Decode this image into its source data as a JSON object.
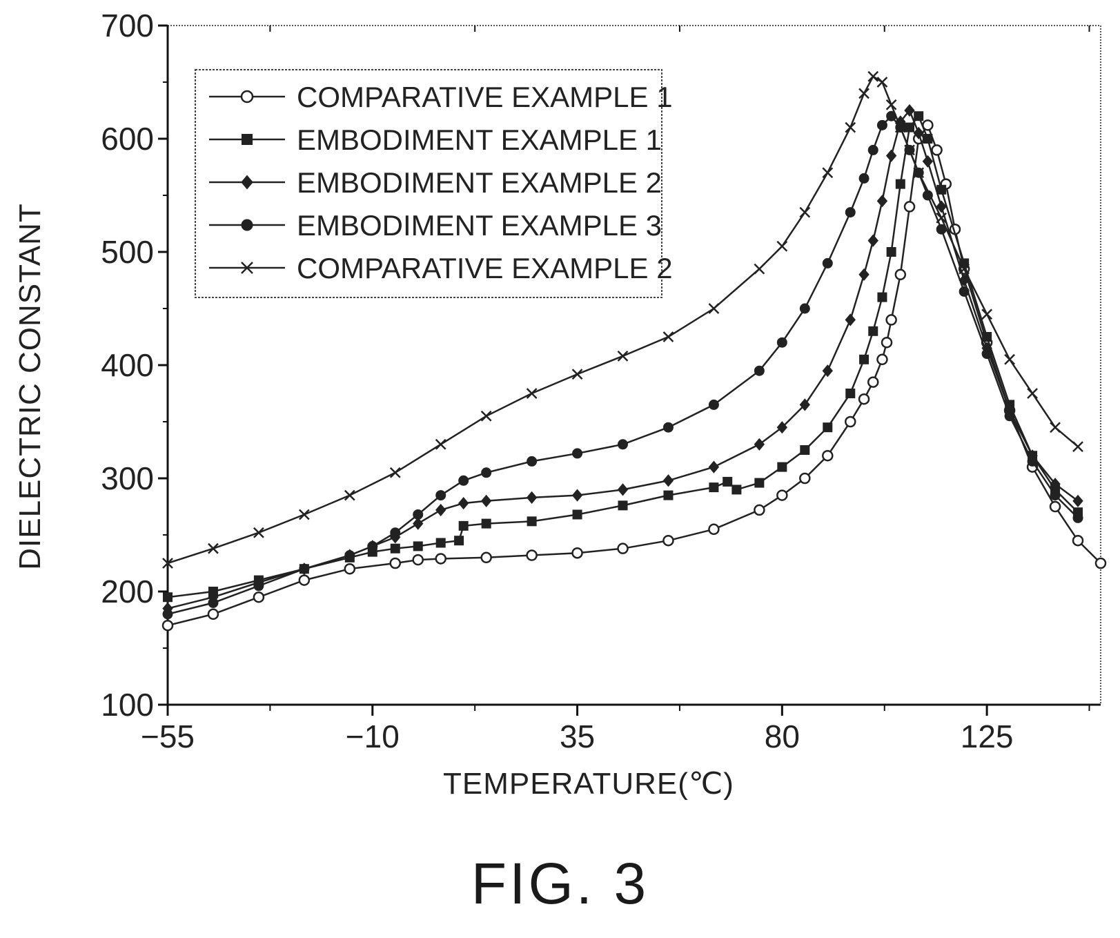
{
  "figure": {
    "caption": "FIG. 3"
  },
  "chart_data": {
    "type": "line",
    "xlabel": "TEMPERATURE(℃)",
    "ylabel": "DIELECTRIC CONSTANT",
    "xlim": [
      -55,
      150
    ],
    "ylim": [
      100,
      700
    ],
    "xticks": [
      -55,
      -10,
      35,
      80,
      125
    ],
    "xtick_labels": [
      "−55",
      "−10",
      "35",
      "80",
      "125"
    ],
    "yticks": [
      100,
      200,
      300,
      400,
      500,
      600,
      700
    ],
    "ytick_labels": [
      "100",
      "200",
      "300",
      "400",
      "500",
      "600",
      "700"
    ],
    "grid": false,
    "legend_position": "top-left",
    "series": [
      {
        "name": "COMPARATIVE EXAMPLE 1",
        "marker": "circle-open",
        "x": [
          -55,
          -45,
          -35,
          -25,
          -15,
          -5,
          0,
          5,
          15,
          25,
          35,
          45,
          55,
          65,
          75,
          80,
          85,
          90,
          95,
          98,
          100,
          102,
          103,
          104,
          106,
          108,
          110,
          112,
          114,
          116,
          118,
          120,
          125,
          130,
          135,
          140,
          145,
          150
        ],
        "y": [
          170,
          180,
          195,
          210,
          220,
          225,
          228,
          229,
          230,
          232,
          234,
          238,
          245,
          255,
          272,
          285,
          300,
          320,
          350,
          370,
          385,
          405,
          420,
          440,
          480,
          540,
          600,
          612,
          590,
          560,
          520,
          485,
          420,
          360,
          310,
          275,
          245,
          225
        ]
      },
      {
        "name": "EMBODIMENT EXAMPLE 1",
        "marker": "square-filled",
        "x": [
          -55,
          -45,
          -35,
          -25,
          -15,
          -10,
          -5,
          0,
          5,
          9,
          10,
          15,
          25,
          35,
          45,
          55,
          65,
          68,
          70,
          75,
          80,
          85,
          90,
          95,
          98,
          100,
          102,
          104,
          106,
          108,
          110,
          112,
          115,
          120,
          125,
          130,
          135,
          140,
          145
        ],
        "y": [
          195,
          200,
          210,
          220,
          230,
          235,
          238,
          240,
          243,
          245,
          258,
          260,
          262,
          268,
          276,
          285,
          292,
          297,
          290,
          296,
          310,
          325,
          345,
          375,
          405,
          430,
          460,
          500,
          560,
          610,
          620,
          600,
          555,
          490,
          425,
          365,
          320,
          290,
          270
        ]
      },
      {
        "name": "EMBODIMENT EXAMPLE 2",
        "marker": "diamond-filled",
        "x": [
          -55,
          -45,
          -35,
          -25,
          -15,
          -10,
          -5,
          0,
          5,
          10,
          15,
          25,
          35,
          45,
          55,
          65,
          75,
          80,
          85,
          90,
          95,
          98,
          100,
          102,
          104,
          106,
          108,
          110,
          112,
          115,
          120,
          125,
          130,
          135,
          140,
          145
        ],
        "y": [
          185,
          195,
          208,
          220,
          232,
          240,
          248,
          260,
          272,
          278,
          280,
          283,
          285,
          290,
          298,
          310,
          330,
          345,
          365,
          395,
          440,
          480,
          510,
          545,
          585,
          615,
          625,
          605,
          580,
          540,
          475,
          415,
          360,
          320,
          295,
          280
        ]
      },
      {
        "name": "EMBODIMENT EXAMPLE 3",
        "marker": "circle-filled",
        "x": [
          -55,
          -45,
          -35,
          -25,
          -15,
          -10,
          -5,
          0,
          5,
          10,
          15,
          25,
          35,
          45,
          55,
          65,
          75,
          80,
          85,
          90,
          95,
          98,
          100,
          102,
          104,
          106,
          108,
          110,
          112,
          115,
          120,
          125,
          130,
          135,
          140,
          145
        ],
        "y": [
          180,
          190,
          205,
          220,
          232,
          240,
          252,
          268,
          285,
          298,
          305,
          315,
          322,
          330,
          345,
          365,
          395,
          420,
          450,
          490,
          535,
          565,
          590,
          612,
          620,
          610,
          590,
          570,
          550,
          520,
          465,
          410,
          355,
          315,
          285,
          265
        ]
      },
      {
        "name": "COMPARATIVE EXAMPLE 2",
        "marker": "cross",
        "x": [
          -55,
          -45,
          -35,
          -25,
          -15,
          -5,
          5,
          15,
          25,
          35,
          45,
          55,
          65,
          75,
          80,
          85,
          90,
          95,
          98,
          100,
          102,
          104,
          106,
          108,
          110,
          115,
          120,
          125,
          130,
          135,
          140,
          145
        ],
        "y": [
          225,
          238,
          252,
          268,
          285,
          305,
          330,
          355,
          375,
          392,
          408,
          425,
          450,
          485,
          505,
          535,
          570,
          610,
          640,
          655,
          650,
          630,
          610,
          590,
          570,
          530,
          485,
          445,
          405,
          375,
          345,
          328
        ]
      }
    ]
  }
}
